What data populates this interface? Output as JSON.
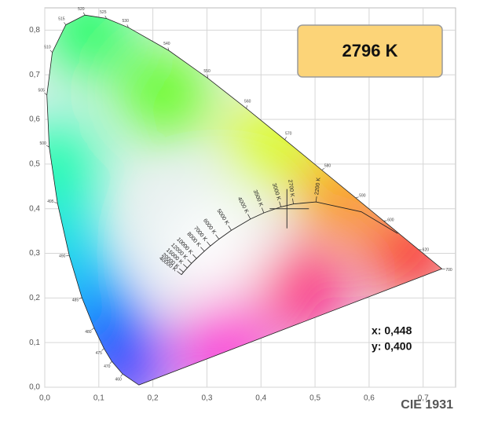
{
  "chart_data": {
    "type": "chromaticity",
    "xlim": [
      0,
      0.76
    ],
    "ylim": [
      0,
      0.85
    ],
    "xticks": [
      {
        "value": 0,
        "label": "0,0"
      },
      {
        "value": 0.1,
        "label": "0,1"
      },
      {
        "value": 0.2,
        "label": "0,2"
      },
      {
        "value": 0.3,
        "label": "0,3"
      },
      {
        "value": 0.4,
        "label": "0,4"
      },
      {
        "value": 0.5,
        "label": "0,5"
      },
      {
        "value": 0.6,
        "label": "0,6"
      },
      {
        "value": 0.7,
        "label": "0,7"
      }
    ],
    "yticks": [
      {
        "value": 0,
        "label": "0,0"
      },
      {
        "value": 0.1,
        "label": "0,1"
      },
      {
        "value": 0.2,
        "label": "0,2"
      },
      {
        "value": 0.3,
        "label": "0,3"
      },
      {
        "value": 0.4,
        "label": "0,4"
      },
      {
        "value": 0.5,
        "label": "0,5"
      },
      {
        "value": 0.6,
        "label": "0,6"
      },
      {
        "value": 0.7,
        "label": "0,7"
      },
      {
        "value": 0.8,
        "label": "0,8"
      }
    ],
    "grid": true,
    "spectral_locus": {
      "x": [
        0.1741,
        0.144,
        0.1241,
        0.1096,
        0.0913,
        0.0687,
        0.0454,
        0.0235,
        0.0082,
        0.0039,
        0.0139,
        0.0389,
        0.0743,
        0.1142,
        0.1547,
        0.2296,
        0.3016,
        0.3731,
        0.4441,
        0.5125,
        0.5752,
        0.627,
        0.6915,
        0.7347
      ],
      "y": [
        0.005,
        0.0297,
        0.0578,
        0.0868,
        0.1327,
        0.2007,
        0.295,
        0.4127,
        0.5384,
        0.6548,
        0.7502,
        0.812,
        0.8338,
        0.8262,
        0.8059,
        0.7543,
        0.6923,
        0.6245,
        0.5547,
        0.4866,
        0.4242,
        0.3725,
        0.3083,
        0.2653
      ],
      "wavelengths": [
        null,
        460,
        470,
        475,
        480,
        485,
        490,
        495,
        500,
        505,
        510,
        515,
        520,
        525,
        530,
        540,
        550,
        560,
        570,
        580,
        590,
        600,
        620,
        700
      ]
    },
    "planckian_locus": {
      "x": [
        0.2529,
        0.2565,
        0.2637,
        0.2714,
        0.2807,
        0.2952,
        0.3064,
        0.3222,
        0.3451,
        0.3805,
        0.4053,
        0.4369,
        0.4599,
        0.5018,
        0.5857,
        0.6528
      ],
      "y": [
        0.2522,
        0.2577,
        0.2673,
        0.2775,
        0.2884,
        0.3048,
        0.3166,
        0.3318,
        0.3516,
        0.3768,
        0.3907,
        0.4041,
        0.4106,
        0.4152,
        0.3931,
        0.3444
      ],
      "labels": [
        "40000 K",
        "20000 K",
        "15000 K",
        "12000 K",
        "10000 K",
        "8000 K",
        "7000 K",
        "6000 K",
        "5000 K",
        "4000 K",
        "3500 K",
        "3000 K",
        "2700 K",
        "2200 K",
        null,
        null
      ]
    },
    "point": {
      "x": 0.448,
      "y": 0.4
    },
    "cct_label": "2796 K",
    "x_label": "x: 0,448",
    "y_label": "y: 0,400",
    "footer": "CIE 1931"
  }
}
